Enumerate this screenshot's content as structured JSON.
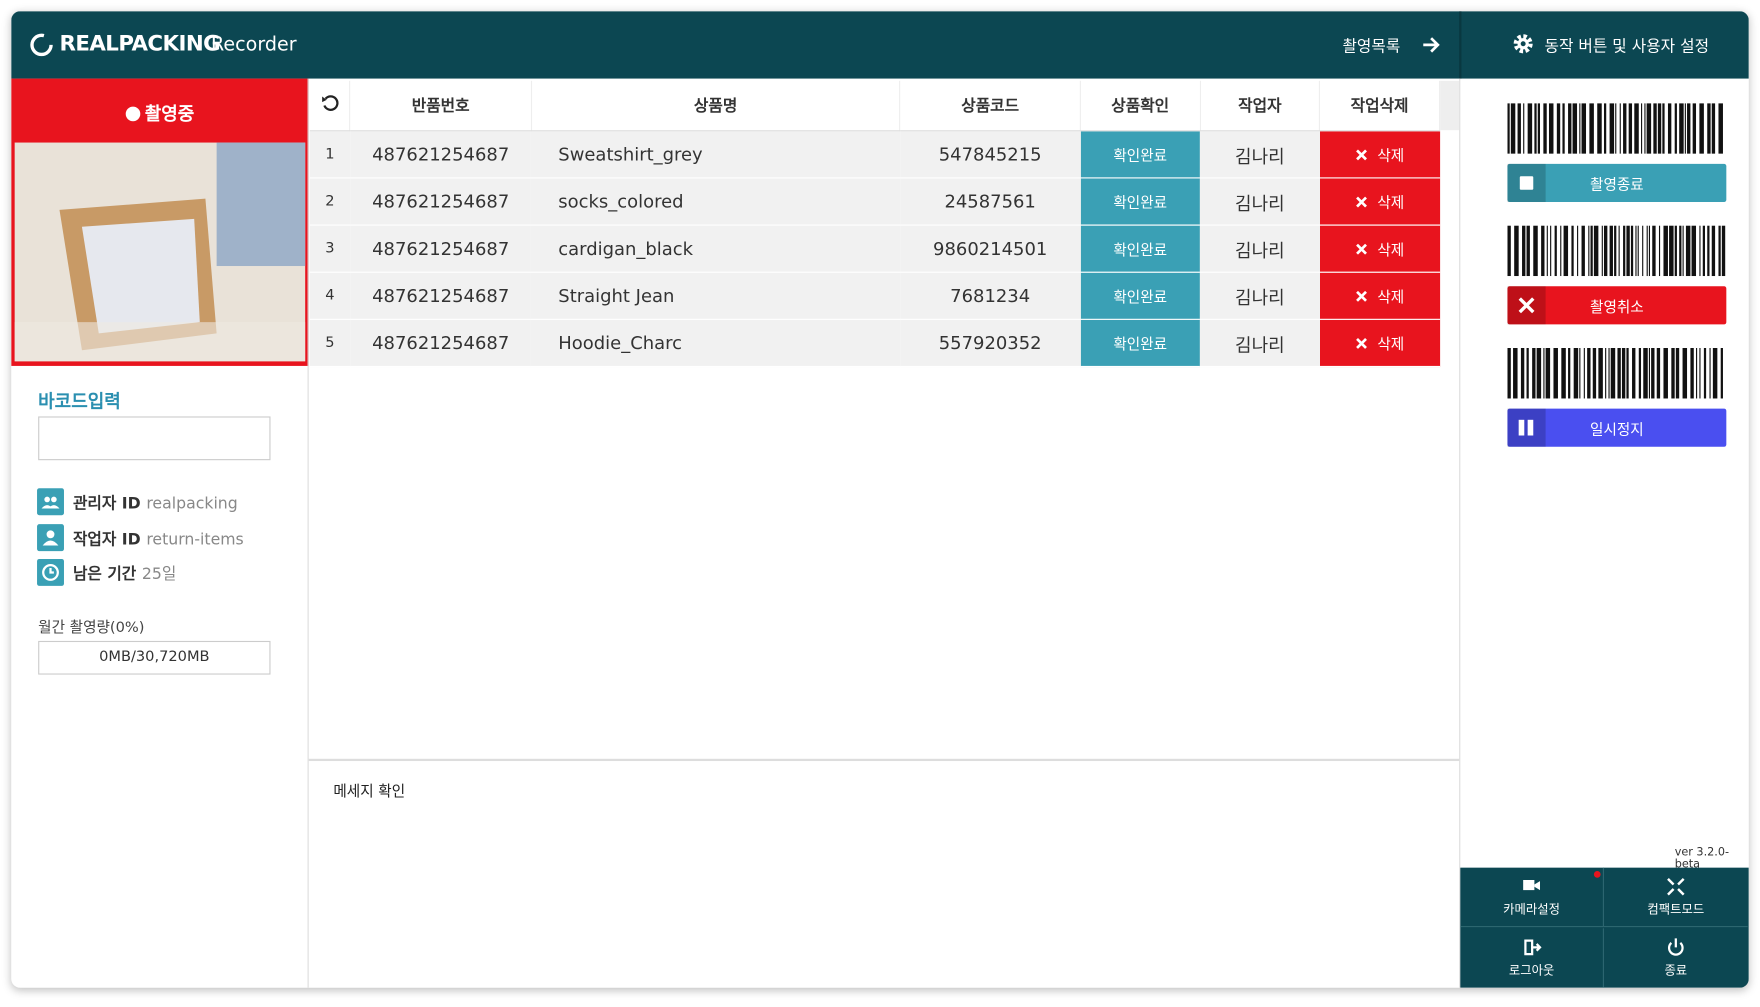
{
  "header": {
    "brand": "REALPACKING",
    "app": "Recorder",
    "nav": "촬영목록",
    "settings": "동작 버튼 및 사용자 설정"
  },
  "recorder": {
    "status": "촬영중"
  },
  "sidebar": {
    "barcode_label": "바코드입력",
    "info": [
      {
        "label": "관리자 ID",
        "value": "realpacking"
      },
      {
        "label": "작업자 ID",
        "value": "return-items"
      },
      {
        "label": "남은 기간",
        "value": "25일"
      }
    ],
    "usage_label": "월간 촬영량(0%)",
    "usage": "0MB/30,720MB"
  },
  "table": {
    "columns": [
      "반품번호",
      "상품명",
      "상품코드",
      "상품확인",
      "작업자",
      "작업삭제"
    ],
    "rows": [
      [
        "1",
        "487621254687",
        "Sweatshirt_grey",
        "547845215",
        "확인완료",
        "김나리",
        "삭제"
      ],
      [
        "2",
        "487621254687",
        "socks_colored",
        "24587561",
        "확인완료",
        "김나리",
        "삭제"
      ],
      [
        "3",
        "487621254687",
        "cardigan_black",
        "9860214501",
        "확인완료",
        "김나리",
        "삭제"
      ],
      [
        "4",
        "487621254687",
        "Straight Jean",
        "7681234",
        "확인완료",
        "김나리",
        "삭제"
      ],
      [
        "5",
        "487621254687",
        "Hoodie_Charc",
        "557920352",
        "확인완료",
        "김나리",
        "삭제"
      ]
    ]
  },
  "message": "메세지 확인",
  "actions": [
    "촬영종료",
    "촬영취소",
    "일시정지"
  ],
  "version": "ver 3.2.0-beta",
  "menu": [
    "카메라설정",
    "컴팩트모드",
    "로그아웃",
    "종료"
  ]
}
